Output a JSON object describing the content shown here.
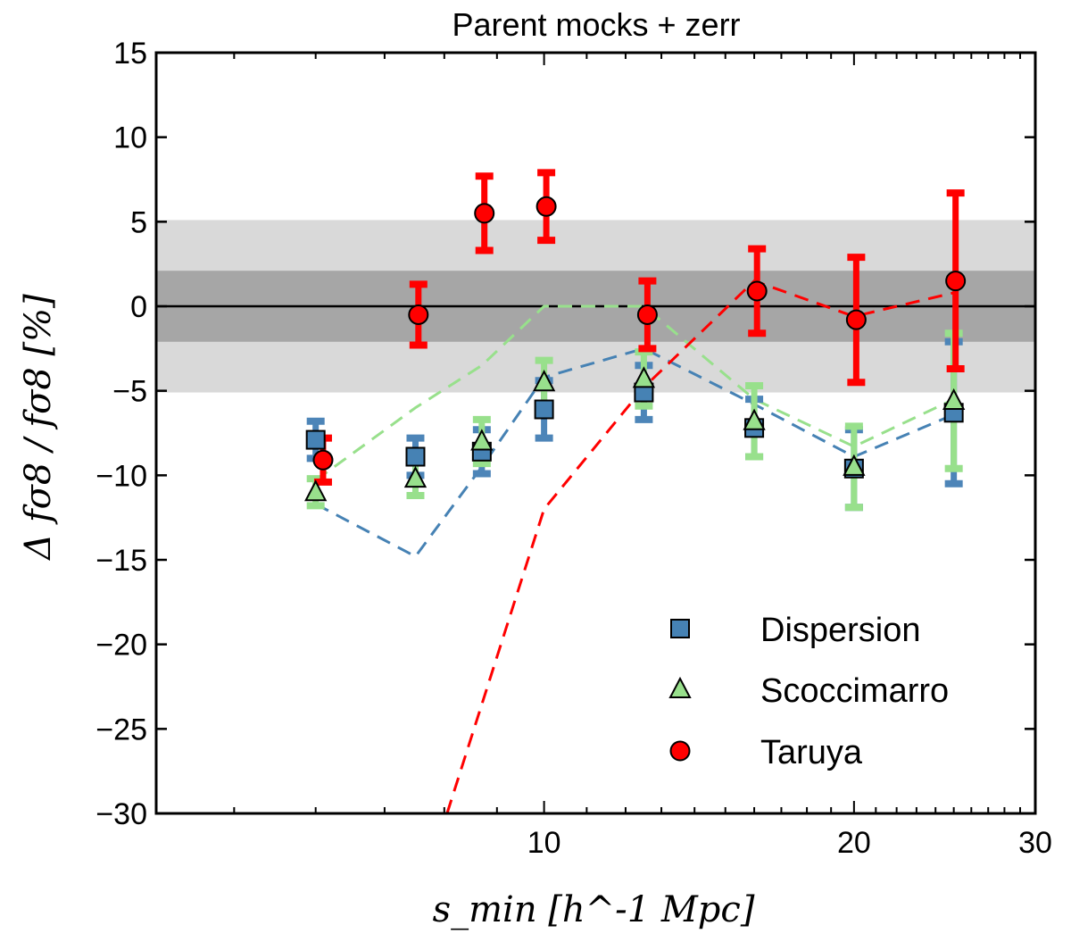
{
  "chart_data": {
    "type": "scatter",
    "title": "Parent mocks + zerr",
    "xlabel": "s_min [h^-1 Mpc]",
    "ylabel": "Δ fσ8 / fσ8 [%]",
    "xscale": "log",
    "xlim": [
      4.2,
      30
    ],
    "ylim": [
      -30,
      15
    ],
    "xticks": [
      10,
      20,
      30
    ],
    "yticks": [
      15,
      10,
      5,
      0,
      -5,
      -10,
      -15,
      -20,
      -25,
      -30
    ],
    "bands": [
      {
        "name": "light",
        "lo": -5.1,
        "hi": 5.1,
        "color": "#d9d9d9"
      },
      {
        "name": "dark",
        "lo": -2.1,
        "hi": 2.1,
        "color": "#a6a6a6"
      }
    ],
    "zero_line": 0,
    "legend_position": "lower-right",
    "series": [
      {
        "name": "Dispersion",
        "marker": "square",
        "color": "#4682b4",
        "errcolor": "#4d85b8",
        "points": [
          {
            "x": 6.0,
            "y": -7.9,
            "err": 1.1
          },
          {
            "x": 7.5,
            "y": -8.9,
            "err": 1.1
          },
          {
            "x": 8.7,
            "y": -8.6,
            "err": 1.3
          },
          {
            "x": 10.0,
            "y": -6.1,
            "err": 1.7
          },
          {
            "x": 12.5,
            "y": -5.1,
            "err": 1.6
          },
          {
            "x": 16.0,
            "y": -7.2,
            "err": 1.7
          },
          {
            "x": 20.0,
            "y": -9.6,
            "err": 2.3
          },
          {
            "x": 25.0,
            "y": -6.3,
            "err": 4.2
          }
        ],
        "model": [
          {
            "x": 6.0,
            "y": -11.7
          },
          {
            "x": 7.5,
            "y": -14.8
          },
          {
            "x": 8.7,
            "y": -9.5
          },
          {
            "x": 10.0,
            "y": -4.2
          },
          {
            "x": 12.5,
            "y": -2.5
          },
          {
            "x": 16.0,
            "y": -5.8
          },
          {
            "x": 20.0,
            "y": -8.9
          },
          {
            "x": 25.0,
            "y": -6.4
          }
        ]
      },
      {
        "name": "Scoccimarro",
        "marker": "triangle",
        "color": "#98e08c",
        "errcolor": "#98e08c",
        "points": [
          {
            "x": 6.0,
            "y": -11.0,
            "err": 0.8
          },
          {
            "x": 7.5,
            "y": -10.2,
            "err": 1.0
          },
          {
            "x": 8.7,
            "y": -8.0,
            "err": 1.3
          },
          {
            "x": 10.0,
            "y": -4.5,
            "err": 1.3
          },
          {
            "x": 12.5,
            "y": -4.3,
            "err": 1.6
          },
          {
            "x": 16.0,
            "y": -6.8,
            "err": 2.1
          },
          {
            "x": 20.0,
            "y": -9.5,
            "err": 2.4
          },
          {
            "x": 25.0,
            "y": -5.6,
            "err": 4.0
          }
        ],
        "model": [
          {
            "x": 6.0,
            "y": -10.3
          },
          {
            "x": 7.5,
            "y": -6.0
          },
          {
            "x": 8.7,
            "y": -3.5
          },
          {
            "x": 10.0,
            "y": 0.0
          },
          {
            "x": 12.5,
            "y": 0.0
          },
          {
            "x": 16.0,
            "y": -5.5
          },
          {
            "x": 20.0,
            "y": -8.3
          },
          {
            "x": 25.0,
            "y": -5.5
          }
        ]
      },
      {
        "name": "Taruya",
        "marker": "circle",
        "color": "#ff0000",
        "errcolor": "#ff0000",
        "points": [
          {
            "x": 6.1,
            "y": -9.1,
            "err": 1.3
          },
          {
            "x": 7.55,
            "y": -0.5,
            "err": 1.8
          },
          {
            "x": 8.75,
            "y": 5.5,
            "err": 2.2
          },
          {
            "x": 10.05,
            "y": 5.9,
            "err": 2.0
          },
          {
            "x": 12.6,
            "y": -0.5,
            "err": 2.0
          },
          {
            "x": 16.1,
            "y": 0.9,
            "err": 2.5
          },
          {
            "x": 20.1,
            "y": -0.8,
            "err": 3.7
          },
          {
            "x": 25.1,
            "y": 1.5,
            "err": 5.2
          }
        ],
        "model": [
          {
            "x": 8.05,
            "y": -30.0
          },
          {
            "x": 10.0,
            "y": -12.0
          },
          {
            "x": 12.5,
            "y": -4.8
          },
          {
            "x": 16.0,
            "y": 1.5
          },
          {
            "x": 20.0,
            "y": -0.6
          },
          {
            "x": 25.0,
            "y": 0.8
          }
        ]
      }
    ]
  }
}
